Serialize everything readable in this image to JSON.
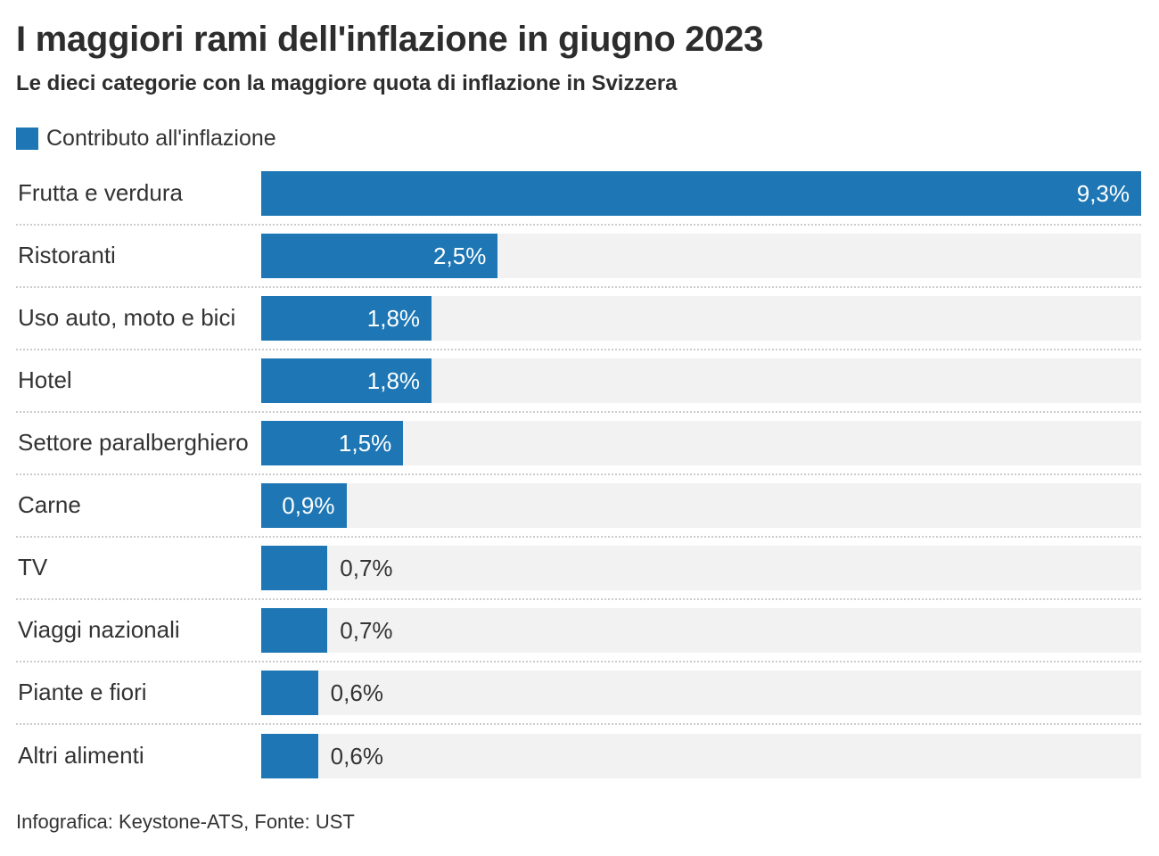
{
  "chart_data": {
    "type": "bar",
    "orientation": "horizontal",
    "title": "I maggiori rami dell'inflazione in giugno 2023",
    "subtitle": "Le dieci categorie con la maggiore quota di inflazione in Svizzera",
    "legend_label": "Contributo all'inflazione",
    "footer": "Infografica: Keystone-ATS, Fonte: UST",
    "unit": "%",
    "categories": [
      "Frutta e verdura",
      "Ristoranti",
      "Uso auto, moto e bici",
      "Hotel",
      "Settore paralberghiero",
      "Carne",
      "TV",
      "Viaggi nazionali",
      "Piante e fiori",
      "Altri alimenti"
    ],
    "values": [
      9.3,
      2.5,
      1.8,
      1.8,
      1.5,
      0.9,
      0.7,
      0.7,
      0.6,
      0.6
    ],
    "value_labels": [
      "9,3%",
      "2,5%",
      "1,8%",
      "1,8%",
      "1,5%",
      "0,9%",
      "0,7%",
      "0,7%",
      "0,6%",
      "0,6%"
    ],
    "xlim": [
      0,
      9.3
    ],
    "grid": "none",
    "legend_position": "top-left",
    "colors": {
      "bar": "#1e77b4",
      "track": "#f2f2f2",
      "text": "#333333",
      "value_inside": "#ffffff",
      "separator": "#cccccc"
    }
  }
}
